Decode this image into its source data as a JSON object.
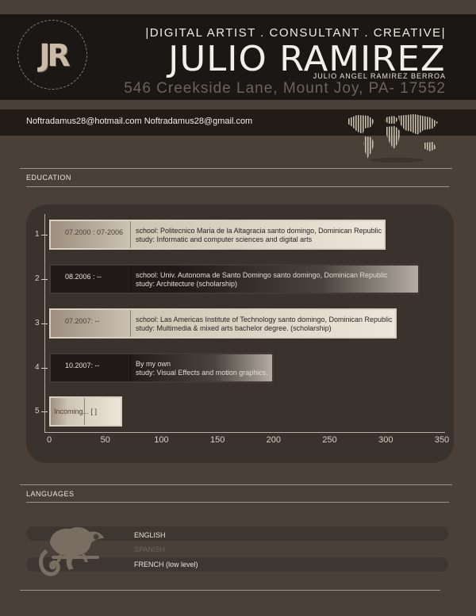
{
  "header": {
    "logo_text": "JR",
    "tagline": "|DIGITAL ARTIST . CONSULTANT . CREATIVE|",
    "name": "JULIO RAMIREZ",
    "full_name": "JULIO ANGEL RAMIREZ BERROA",
    "address": "546 Creekside Lane, Mount Joy, PA- 17552"
  },
  "contact": {
    "emails": "Noftradamus28@hotmail.com  Noftradamus28@gmail.com"
  },
  "education": {
    "title": "EDUCATION",
    "chart_data": {
      "type": "bar",
      "orientation": "horizontal",
      "categories": [
        "1",
        "2",
        "3",
        "4",
        "5"
      ],
      "values": [
        300,
        330,
        310,
        200,
        65
      ],
      "xlim": [
        0,
        350
      ],
      "x_ticks": [
        "0",
        "50",
        "100",
        "150",
        "200",
        "250",
        "300",
        "350"
      ],
      "grid": false
    },
    "entries": [
      {
        "index": "1",
        "date": "07.2000 : 07-2006",
        "line1": "school: Politecnico Maria de la Altagracia     santo domingo, Dominican Republic",
        "line2": "study:  Informatic  and computer sciences and digital arts",
        "style": "light"
      },
      {
        "index": "2",
        "date": "08.2006 : --",
        "line1": "school: Univ. Autonoma de Santo Domingo  santo domingo, Dominican Republic",
        "line2": "study: Architecture (scholarship)",
        "style": "dark"
      },
      {
        "index": "3",
        "date": "07.2007: --",
        "line1": "school: Las Americas Institute of Technology   santo domingo, Dominican Republic",
        "line2": "study: Multimedia & mixed arts bachelor degree.   (scholarship)",
        "style": "light"
      },
      {
        "index": "4",
        "date": "10.2007: --",
        "line1": "By my own",
        "line2": "study: Visual Effects and motion graphics.",
        "style": "dark"
      },
      {
        "index": "5",
        "date": "Incoming... [ ]",
        "line1": "",
        "line2": "",
        "style": "light"
      }
    ]
  },
  "languages": {
    "title": "LANGUAGES",
    "items": [
      {
        "label": "ENGLISH",
        "color": "#e8e2d8"
      },
      {
        "label": "SPANISH",
        "color": "#6e645a"
      },
      {
        "label": "FRENCH (low level)",
        "color": "#e8e2d8"
      }
    ]
  },
  "colors": {
    "background": "#4a4038",
    "header": "#1b1714",
    "panel": "#3a322c",
    "accent": "#d8cfbf"
  },
  "icons": {
    "logo": "jr-monogram-icon",
    "map": "world-map-icon",
    "mascot": "chameleon-icon"
  }
}
